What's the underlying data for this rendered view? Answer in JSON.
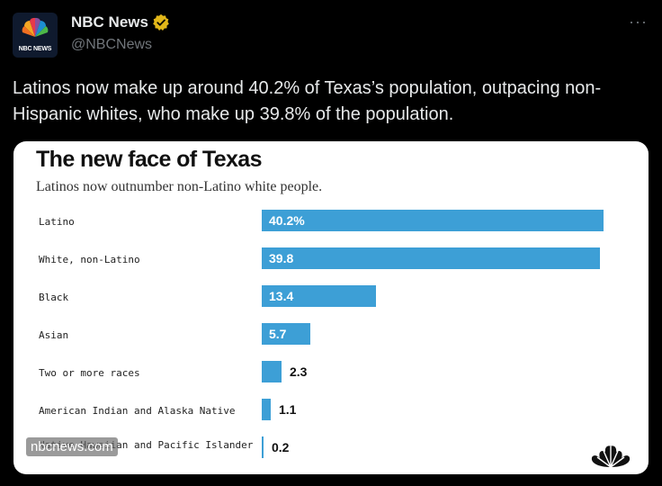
{
  "account": {
    "name": "NBC News",
    "handle": "@NBCNews",
    "avatar_text": "NBC NEWS",
    "avatar_icon": "peacock-icon",
    "verified_icon": "verified-badge-icon",
    "more_label": "···"
  },
  "tweet": {
    "text": "Latinos now make up around 40.2% of Texas’s population, outpacing non-Hispanic whites, who make up 39.8% of the population."
  },
  "watermark": "nbcnews.com",
  "colors": {
    "bar": "#3d9fd6",
    "verified": "#e2b719"
  },
  "chart_data": {
    "type": "bar",
    "title": "The new face of Texas",
    "subtitle": "Latinos now outnumber non-Latino white people.",
    "categories": [
      "Latino",
      "White, non-Latino",
      "Black",
      "Asian",
      "Two or more races",
      "American Indian and Alaska Native",
      "Native Hawaiian and Pacific Islander"
    ],
    "values": [
      40.2,
      39.8,
      13.4,
      5.7,
      2.3,
      1.1,
      0.2
    ],
    "value_labels": [
      "40.2%",
      "39.8",
      "13.4",
      "5.7",
      "2.3",
      "1.1",
      "0.2"
    ],
    "xlim": [
      0,
      40.2
    ],
    "grid": false,
    "legend": "none"
  }
}
